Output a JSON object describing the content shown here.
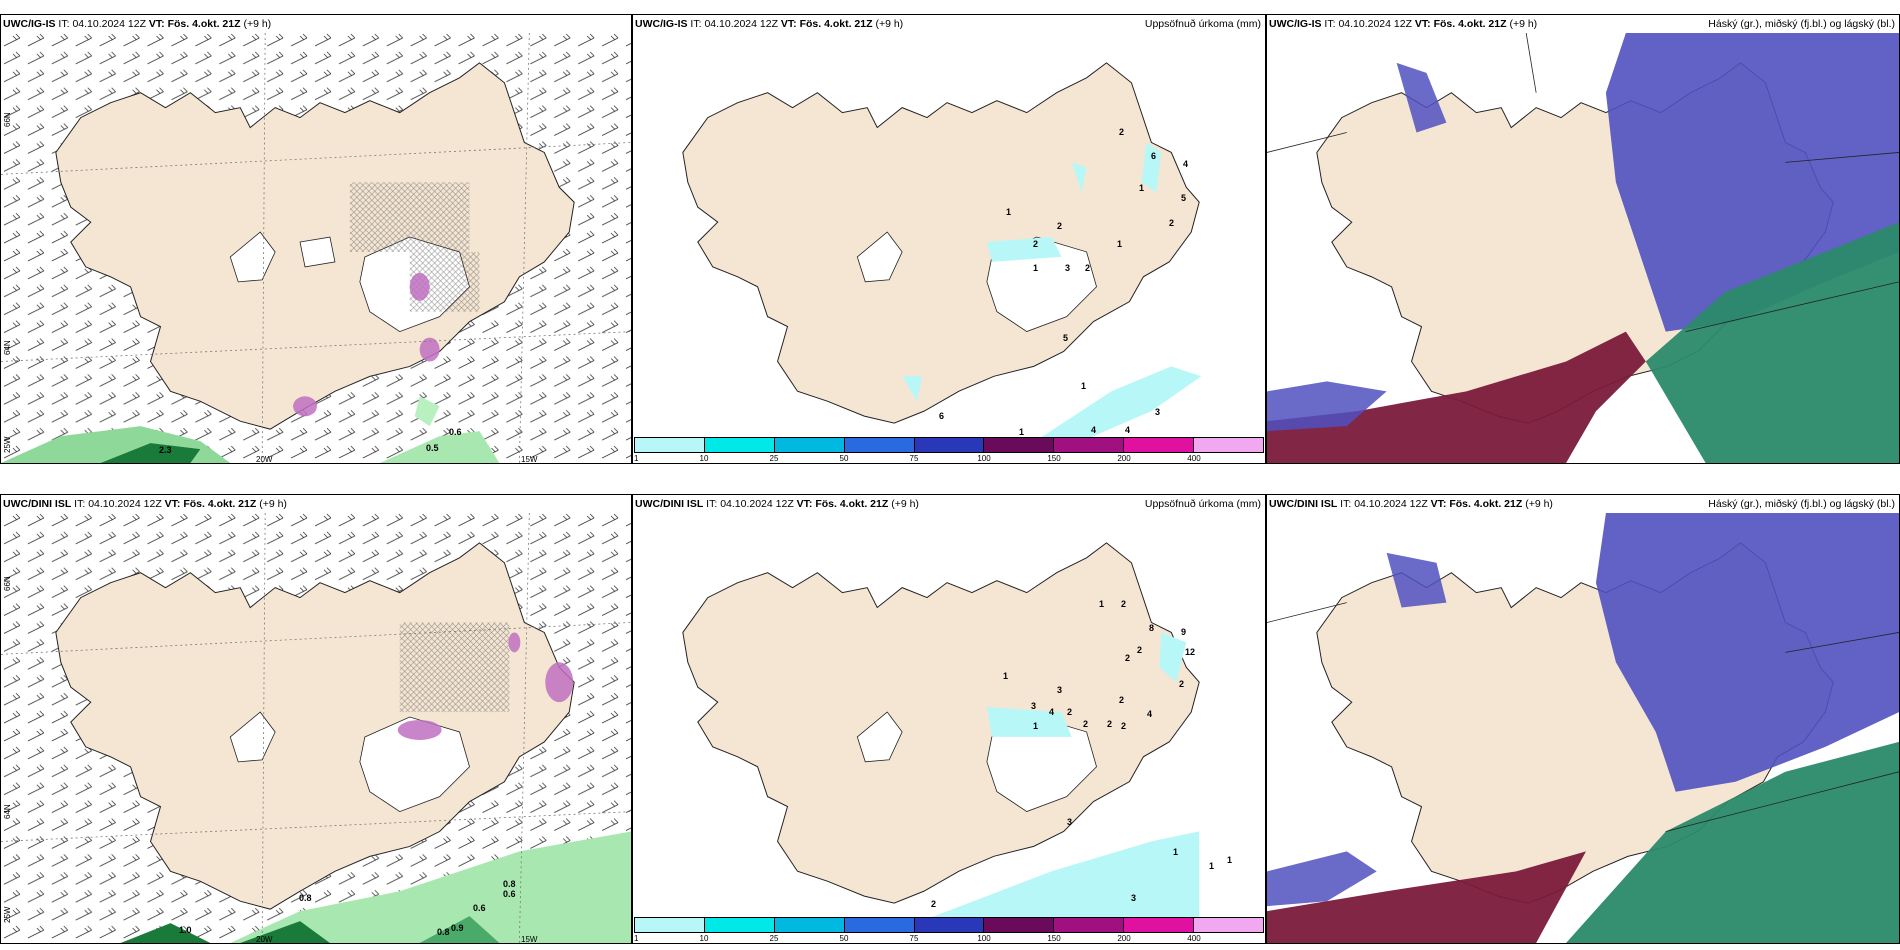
{
  "header": {
    "it_label": "IT:",
    "it_value": "04.10.2024 12Z",
    "vt_label": "VT:",
    "vt_value": "Fös. 4.okt. 21Z",
    "lead": "(+9 h)"
  },
  "models": {
    "top": "UWC/IG-IS",
    "bottom": "UWC/DINI ISL"
  },
  "titles": {
    "precip": "Uppsöfnuð úrkoma (mm)",
    "cloud": "Háský (gr.), miðský (fj.bl.) og lágský (bl.)"
  },
  "grid_labels": {
    "lat_66": "66N",
    "lat_64": "64N",
    "lon_25": "25W",
    "lon_20": "20W",
    "lon_15": "15W"
  },
  "precip_legend": {
    "ticks": [
      "1",
      "10",
      "25",
      "50",
      "75",
      "100",
      "150",
      "200",
      "400"
    ],
    "colors": [
      "#b8f7f7",
      "#00e8e8",
      "#00b8e0",
      "#2a6ae0",
      "#2838b8",
      "#6a0a5a",
      "#a01080",
      "#e010a0",
      "#f0a8f0"
    ]
  },
  "wind_precip_values": {
    "top": [
      "2.3",
      "0.6",
      "0.5"
    ],
    "bottom": [
      "1.0",
      "0.8",
      "0.6",
      "0.6",
      "0.9",
      "0.8",
      "0.8"
    ]
  },
  "precip_values": {
    "top": [
      "2",
      "6",
      "4",
      "1",
      "5",
      "2",
      "1",
      "2",
      "1",
      "2",
      "1",
      "3",
      "2",
      "5",
      "1",
      "3",
      "4",
      "1",
      "6",
      "4"
    ],
    "bottom": [
      "1",
      "2",
      "8",
      "9",
      "12",
      "2",
      "2",
      "2",
      "1",
      "3",
      "2",
      "3",
      "4",
      "2",
      "1",
      "2",
      "2",
      "2",
      "4",
      "3",
      "1",
      "1",
      "1",
      "3",
      "2"
    ]
  },
  "colors": {
    "land": "#f5e6d3",
    "dry": "#ffffff",
    "precip_light": "#b8f7f7",
    "high_cloud": "#5050c0",
    "mid_cloud": "#2a8a6a",
    "low_cloud": "#7a1a3a"
  }
}
